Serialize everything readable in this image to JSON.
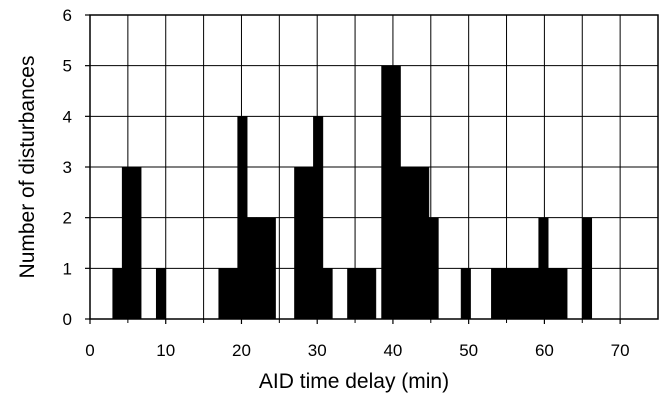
{
  "chart_data": {
    "type": "bar",
    "xlabel": "AID time delay (min)",
    "ylabel": "Number of disturbances",
    "xlim": [
      0,
      75
    ],
    "ylim": [
      0,
      6
    ],
    "x_ticks": [
      "0",
      "10",
      "20",
      "30",
      "40",
      "50",
      "60",
      "70"
    ],
    "y_ticks": [
      "0",
      "1",
      "2",
      "3",
      "4",
      "5",
      "6"
    ],
    "grid": true,
    "bar_color": "#000000",
    "bin_width_min": 1.25,
    "bins": [
      {
        "start": 3.0,
        "end": 4.25,
        "count": 1
      },
      {
        "start": 4.25,
        "end": 5.5,
        "count": 3
      },
      {
        "start": 5.5,
        "end": 6.75,
        "count": 3
      },
      {
        "start": 8.75,
        "end": 10.0,
        "count": 1
      },
      {
        "start": 17.0,
        "end": 18.25,
        "count": 1
      },
      {
        "start": 18.25,
        "end": 19.5,
        "count": 1
      },
      {
        "start": 19.5,
        "end": 20.75,
        "count": 4
      },
      {
        "start": 20.75,
        "end": 22.0,
        "count": 2
      },
      {
        "start": 22.0,
        "end": 23.25,
        "count": 2
      },
      {
        "start": 23.25,
        "end": 24.5,
        "count": 2
      },
      {
        "start": 27.0,
        "end": 28.25,
        "count": 3
      },
      {
        "start": 28.25,
        "end": 29.5,
        "count": 3
      },
      {
        "start": 29.5,
        "end": 30.75,
        "count": 4
      },
      {
        "start": 30.75,
        "end": 32.0,
        "count": 1
      },
      {
        "start": 34.0,
        "end": 35.25,
        "count": 1
      },
      {
        "start": 35.25,
        "end": 36.5,
        "count": 1
      },
      {
        "start": 36.5,
        "end": 37.75,
        "count": 1
      },
      {
        "start": 38.5,
        "end": 39.75,
        "count": 5
      },
      {
        "start": 39.75,
        "end": 41.0,
        "count": 5
      },
      {
        "start": 41.0,
        "end": 42.25,
        "count": 3
      },
      {
        "start": 42.25,
        "end": 43.5,
        "count": 3
      },
      {
        "start": 43.5,
        "end": 44.75,
        "count": 3
      },
      {
        "start": 44.75,
        "end": 46.0,
        "count": 2
      },
      {
        "start": 49.0,
        "end": 50.25,
        "count": 1
      },
      {
        "start": 53.0,
        "end": 54.25,
        "count": 1
      },
      {
        "start": 54.25,
        "end": 55.5,
        "count": 1
      },
      {
        "start": 55.5,
        "end": 56.75,
        "count": 1
      },
      {
        "start": 56.75,
        "end": 58.0,
        "count": 1
      },
      {
        "start": 58.0,
        "end": 59.25,
        "count": 1
      },
      {
        "start": 59.25,
        "end": 60.5,
        "count": 2
      },
      {
        "start": 60.5,
        "end": 61.75,
        "count": 1
      },
      {
        "start": 61.75,
        "end": 63.0,
        "count": 1
      },
      {
        "start": 65.0,
        "end": 66.25,
        "count": 2
      }
    ]
  }
}
